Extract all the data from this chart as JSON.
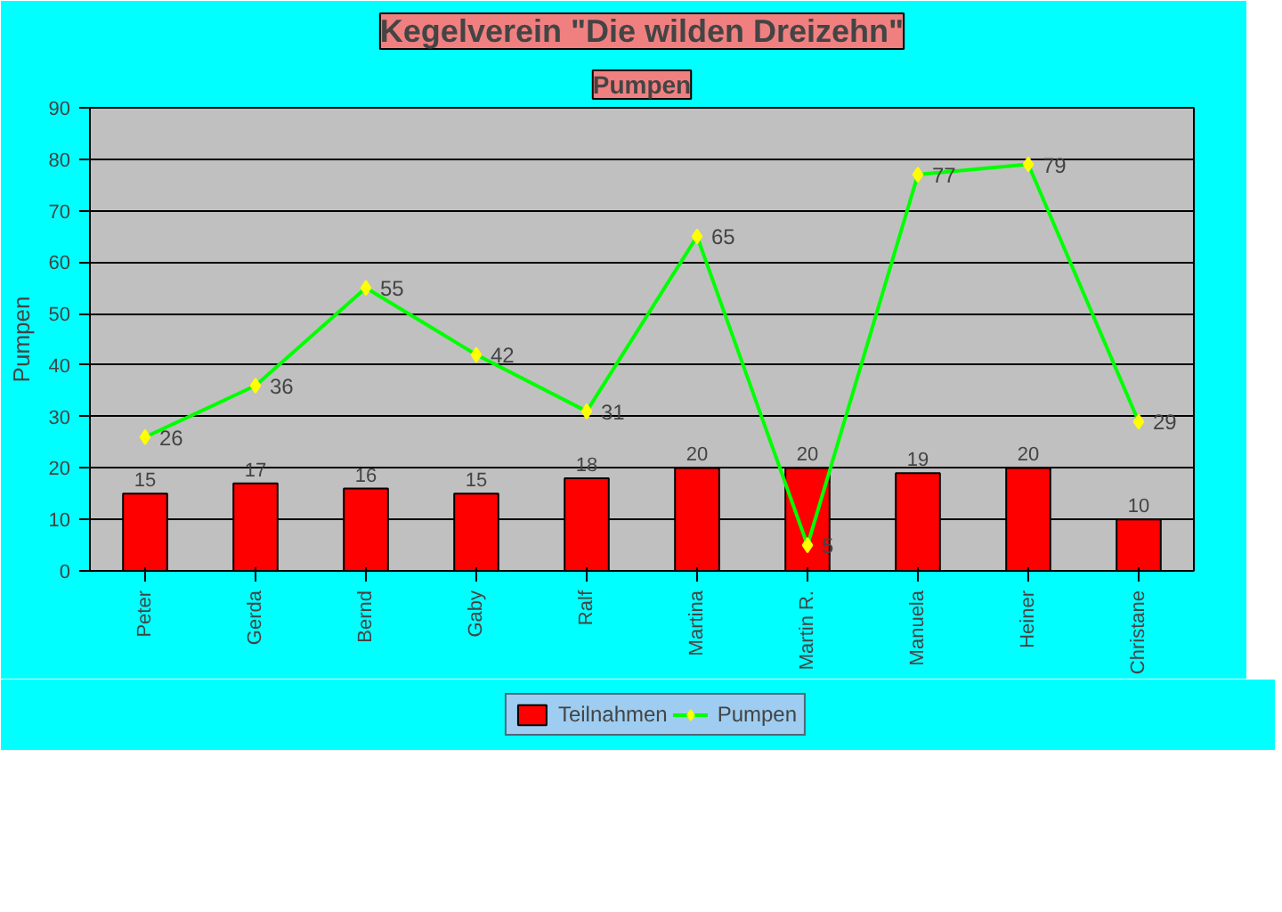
{
  "chart_data": {
    "type": "bar",
    "title": "Kegelverein \"Die wilden Dreizehn\"",
    "subtitle": "Pumpen",
    "ylabel": "Pumpen",
    "categories": [
      "Peter",
      "Gerda",
      "Bernd",
      "Gaby",
      "Ralf",
      "Martina",
      "Martin R.",
      "Manuela",
      "Heiner",
      "Christane"
    ],
    "series": [
      {
        "name": "Teilnahmen",
        "color": "#ff0000",
        "values": [
          15,
          17,
          16,
          15,
          18,
          20,
          20,
          19,
          20,
          10
        ]
      },
      {
        "name": "Pumpen",
        "type": "line",
        "color": "#00ff00",
        "marker": "diamond",
        "values": [
          26,
          36,
          55,
          42,
          31,
          65,
          5,
          77,
          79,
          29
        ]
      }
    ],
    "ylim": [
      0,
      90
    ],
    "yticks": [
      0,
      10,
      20,
      30,
      40,
      50,
      60,
      70,
      80,
      90
    ],
    "grid": "y",
    "legend": "bottom",
    "data_labels": true
  }
}
